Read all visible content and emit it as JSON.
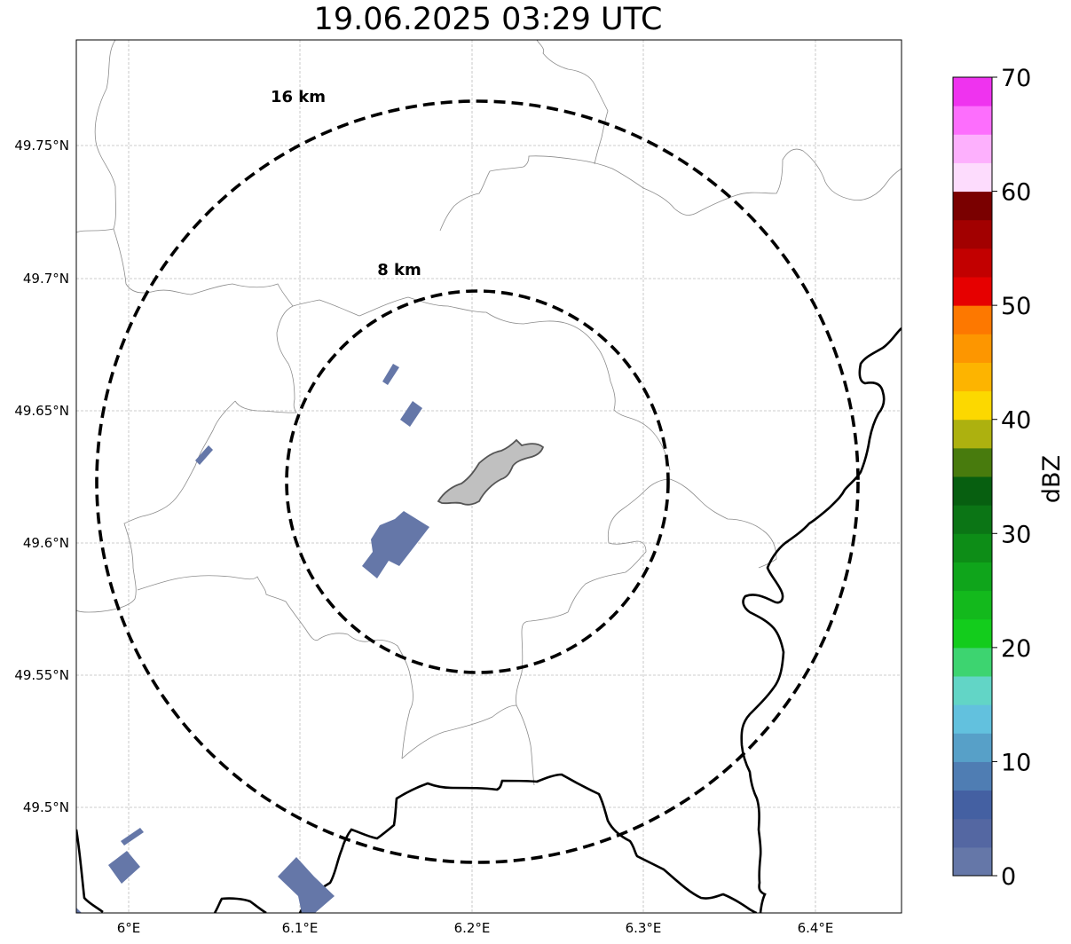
{
  "title": "19.06.2025 03:29 UTC",
  "map": {
    "lat_ticks": [
      "49.75°N",
      "49.7°N",
      "49.65°N",
      "49.6°N",
      "49.55°N",
      "49.5°N"
    ],
    "lon_ticks": [
      "6°E",
      "6.1°E",
      "6.2°E",
      "6.3°E",
      "6.4°E"
    ],
    "rings": [
      {
        "label": "16 km",
        "radius_km": 16
      },
      {
        "label": "8 km",
        "radius_km": 8
      }
    ],
    "center": {
      "lat": 49.623,
      "lon": 6.202
    },
    "grid": true,
    "echo_color": "#6577a8",
    "city_fill": "#c0c0c0",
    "border_color": "#000000",
    "boundary_color": "#999999"
  },
  "colorbar": {
    "title": "dBZ",
    "ticks": [
      "0",
      "10",
      "20",
      "30",
      "40",
      "50",
      "60",
      "70"
    ],
    "min": 0,
    "max": 70,
    "step": 2.5,
    "colors": [
      "#6577a8",
      "#5467a2",
      "#4460a2",
      "#4f7db3",
      "#57a0c8",
      "#62c1de",
      "#62d5c6",
      "#3dd470",
      "#13cc1c",
      "#13b91c",
      "#0fa51b",
      "#0d8d17",
      "#0b7515",
      "#075f10",
      "#487b0d",
      "#adb10f",
      "#fcd800",
      "#fdb400",
      "#fd9600",
      "#fd7800",
      "#e60000",
      "#c20000",
      "#a20000",
      "#7a0000",
      "#fddcfd",
      "#fdb0fd",
      "#fd6efd",
      "#ef33ef"
    ]
  }
}
